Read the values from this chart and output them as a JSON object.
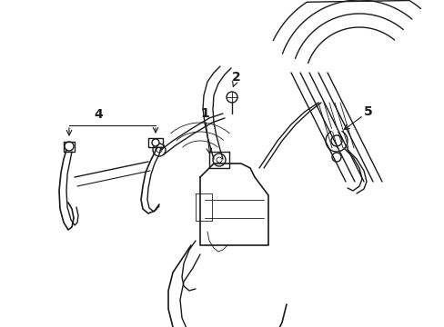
{
  "background_color": "#ffffff",
  "line_color": "#1a1a1a",
  "lw": 1.0,
  "tlw": 0.6,
  "figsize": [
    4.89,
    3.6
  ],
  "dpi": 100,
  "label_fontsize": 9
}
